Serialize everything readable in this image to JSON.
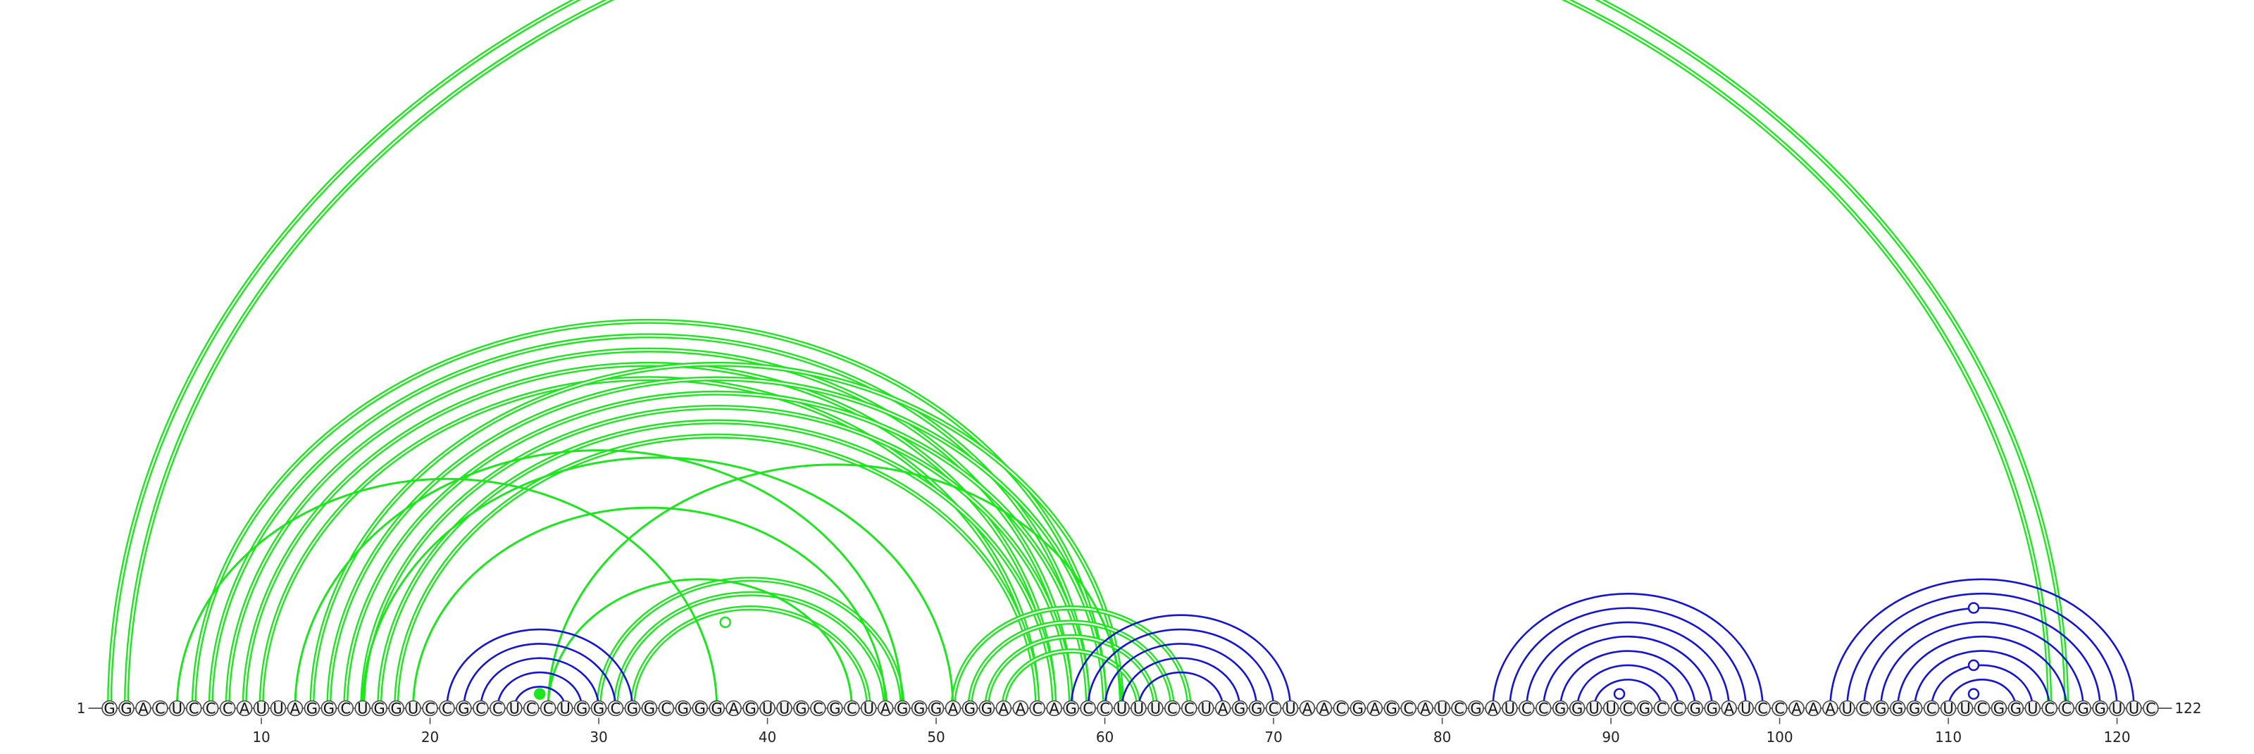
{
  "sequence": "GGACUCCCAUUAGGCUGGUCCGCCUCCUGGCGGCGGGAGUUGCGCUAGGGAGGAACAGCCUUUCCUAGGCUAACGAGCAUCGAUCCGGUUCGCCGGAUCCAAAUCGGGCUUCGGUCCGGUUC",
  "length": 122,
  "start_label": "1",
  "end_label": "122",
  "ticks": [
    "10",
    "20",
    "30",
    "40",
    "50",
    "60",
    "70",
    "80",
    "90",
    "100",
    "110",
    "120"
  ],
  "colors": {
    "green": "#1ee61e",
    "blue": "#1414d2",
    "node_fill": "#f2f2f2",
    "node_stroke": "#444444"
  },
  "arcs": {
    "green_bold": [
      [
        1,
        117
      ],
      [
        2,
        116
      ],
      [
        6,
        60
      ],
      [
        7,
        59
      ],
      [
        8,
        58
      ],
      [
        9,
        57
      ],
      [
        10,
        56
      ],
      [
        13,
        61
      ],
      [
        14,
        60
      ],
      [
        15,
        59
      ],
      [
        16,
        58
      ],
      [
        17,
        57
      ],
      [
        18,
        56
      ],
      [
        30,
        48
      ],
      [
        31,
        47
      ],
      [
        32,
        46
      ],
      [
        51,
        65
      ],
      [
        52,
        64
      ],
      [
        53,
        63
      ],
      [
        54,
        62
      ]
    ],
    "green_thin": [
      [
        5,
        37
      ],
      [
        12,
        48
      ],
      [
        16,
        51
      ],
      [
        19,
        47
      ],
      [
        27,
        45
      ],
      [
        27,
        61
      ]
    ],
    "blue": [
      [
        21,
        32
      ],
      [
        22,
        31
      ],
      [
        23,
        30
      ],
      [
        24,
        29
      ],
      [
        25,
        28
      ],
      [
        58,
        71
      ],
      [
        59,
        70
      ],
      [
        60,
        69
      ],
      [
        61,
        68
      ],
      [
        62,
        67
      ],
      [
        83,
        99
      ],
      [
        84,
        98
      ],
      [
        85,
        97
      ],
      [
        86,
        96
      ],
      [
        87,
        95
      ],
      [
        88,
        94
      ],
      [
        89,
        93
      ],
      [
        103,
        121
      ],
      [
        104,
        120
      ],
      [
        105,
        119
      ],
      [
        106,
        118
      ],
      [
        107,
        117
      ],
      [
        108,
        116
      ],
      [
        109,
        115
      ],
      [
        110,
        114
      ]
    ]
  },
  "markers": [
    {
      "pos": 26.5,
      "level": 1,
      "color": "green",
      "filled": true
    },
    {
      "pos": 37.5,
      "level": 6,
      "color": "green",
      "filled": false
    },
    {
      "pos": 90.5,
      "level": 1,
      "color": "blue",
      "filled": false
    },
    {
      "pos": 111.5,
      "level": 1,
      "color": "blue",
      "filled": false
    },
    {
      "pos": 111.5,
      "level": 3,
      "color": "blue",
      "filled": false
    },
    {
      "pos": 111.5,
      "level": 7,
      "color": "blue",
      "filled": false
    }
  ]
}
